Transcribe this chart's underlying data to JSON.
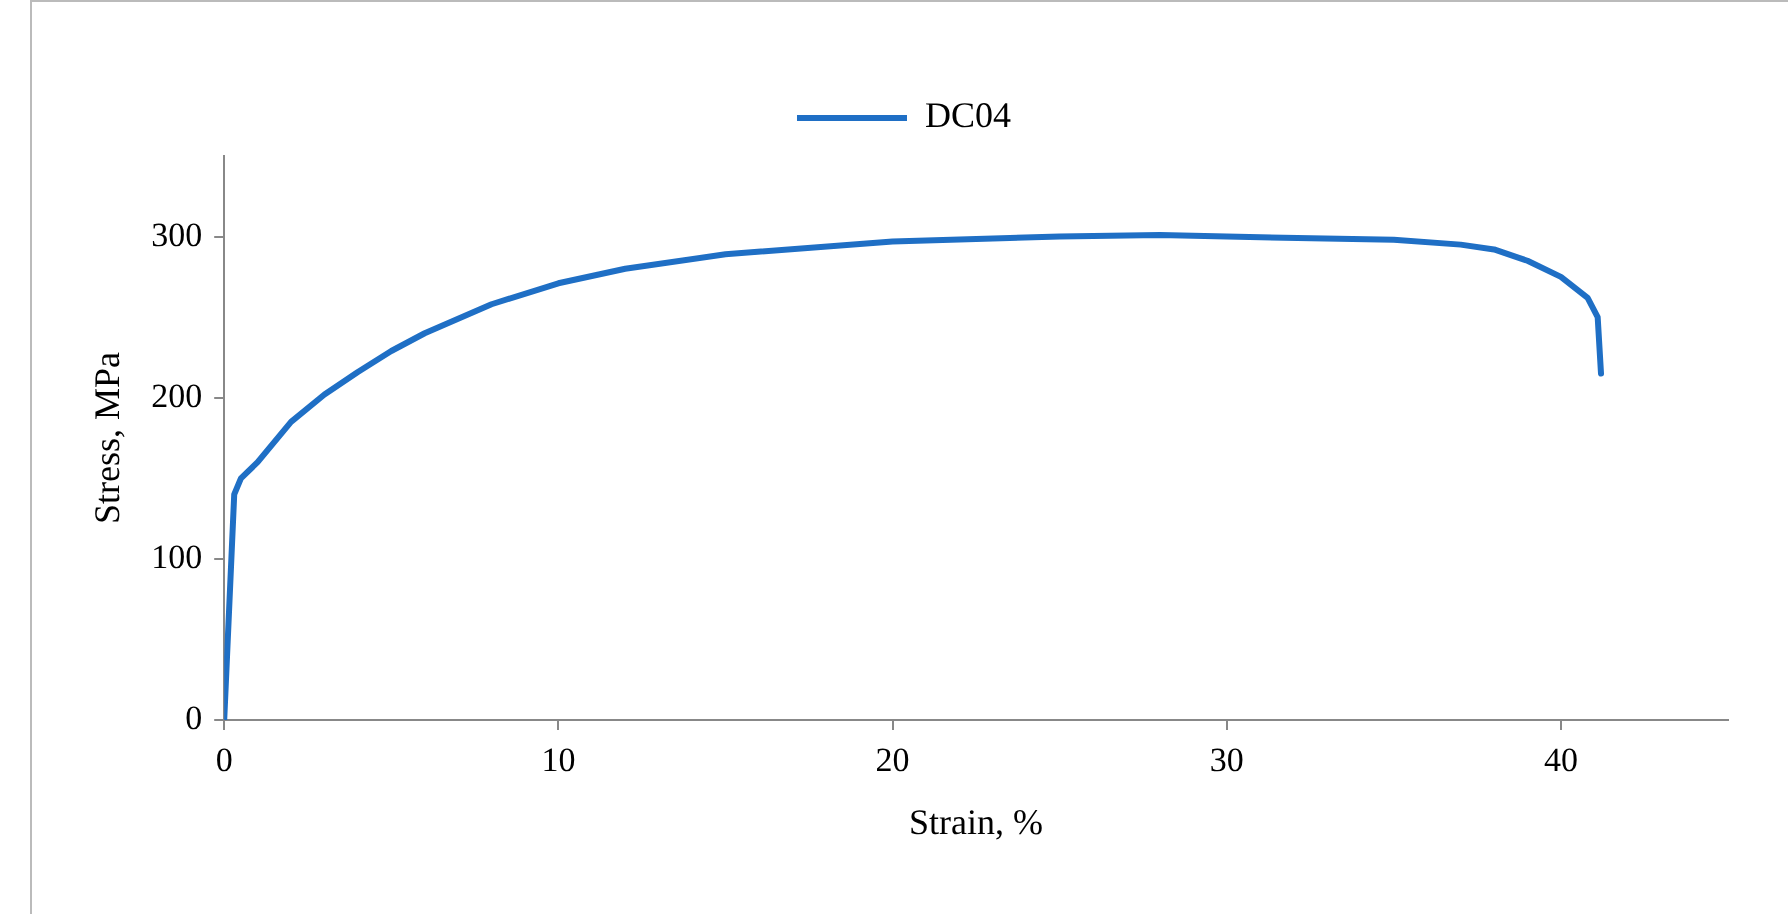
{
  "chart_data": {
    "type": "line",
    "xlabel": "Strain, %",
    "ylabel": "Stress, MPa",
    "series": [
      {
        "name": "DC04",
        "color": "#1f6fc5",
        "x": [
          0,
          0.3,
          0.5,
          1,
          2,
          3,
          4,
          5,
          6,
          8,
          10,
          12,
          15,
          20,
          25,
          28,
          30,
          35,
          37,
          38,
          39,
          40,
          40.8,
          41.1,
          41.2
        ],
        "values": [
          0,
          140,
          150,
          160,
          185,
          202,
          216,
          229,
          240,
          258,
          271,
          280,
          289,
          297,
          300,
          301,
          300,
          298,
          295,
          292,
          285,
          275,
          262,
          250,
          215
        ]
      }
    ],
    "xlim": [
      0,
      45
    ],
    "xticks": [
      0,
      10,
      20,
      30,
      40
    ],
    "ylim": [
      0,
      350
    ],
    "yticks": [
      0,
      100,
      200,
      300
    ],
    "grid": false,
    "legend": "top",
    "marker": "none",
    "line_style": "solid"
  }
}
